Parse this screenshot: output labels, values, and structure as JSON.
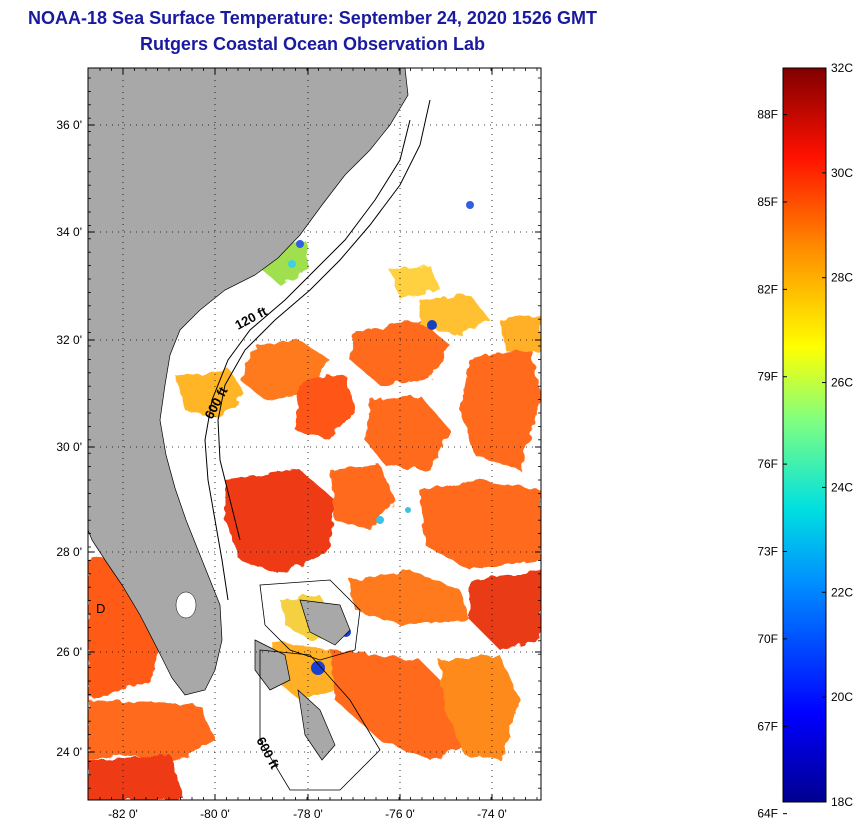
{
  "title": {
    "line1": "NOAA-18 Sea Surface Temperature:  September 24, 2020 1526 GMT",
    "line2": "Rutgers Coastal Ocean Observation Lab"
  },
  "map": {
    "lat_ticks": [
      "36 0'",
      "34 0'",
      "32 0'",
      "30 0'",
      "28 0'",
      "26 0'",
      "24 0'"
    ],
    "lon_ticks": [
      "-82 0'",
      "-80 0'",
      "-78 0'",
      "-76 0'",
      "-74 0'"
    ],
    "contour_labels": [
      "120 ft",
      "600 ft",
      "600 ft"
    ],
    "inset_letter": "D",
    "colors": {
      "land": "#a8a8a8",
      "no_data": "#ffffff",
      "warm": "#ff5a14",
      "hot": "#ee2a10",
      "mid": "#ffb020",
      "cool": "#9ae040",
      "cold": "#1a60e0"
    }
  },
  "colorbar": {
    "celsius_labels": [
      "32C",
      "30C",
      "28C",
      "26C",
      "24C",
      "22C",
      "20C",
      "18C"
    ],
    "fahrenheit_labels": [
      "88F",
      "85F",
      "82F",
      "79F",
      "76F",
      "73F",
      "70F",
      "67F",
      "64F"
    ],
    "range_c": [
      18,
      32
    ],
    "range_f": [
      64,
      90
    ]
  }
}
